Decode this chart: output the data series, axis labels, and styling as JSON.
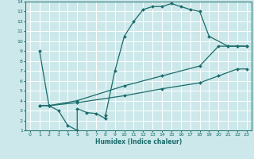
{
  "xlabel": "Humidex (Indice chaleur)",
  "xlim": [
    -0.5,
    23.5
  ],
  "ylim": [
    1,
    14
  ],
  "xticks": [
    0,
    1,
    2,
    3,
    4,
    5,
    6,
    7,
    8,
    9,
    10,
    11,
    12,
    13,
    14,
    15,
    16,
    17,
    18,
    19,
    20,
    21,
    22,
    23
  ],
  "yticks": [
    1,
    2,
    3,
    4,
    5,
    6,
    7,
    8,
    9,
    10,
    11,
    12,
    13,
    14
  ],
  "bg_color": "#cce8ea",
  "grid_color": "#ffffff",
  "line_color": "#1a6b6b",
  "curve1_x": [
    1,
    2,
    3,
    4,
    5,
    5,
    6,
    7,
    8,
    8,
    9,
    10,
    11,
    12,
    13,
    14,
    15,
    16,
    17,
    18,
    19,
    21,
    22,
    23
  ],
  "curve1_y": [
    9,
    3.5,
    3,
    1.5,
    1,
    3.2,
    2.8,
    2.7,
    2.2,
    2.5,
    7,
    10.5,
    12,
    13.2,
    13.5,
    13.5,
    13.8,
    13.5,
    13.2,
    13.0,
    10.5,
    9.5,
    9.5,
    9.5
  ],
  "curve2_x": [
    1,
    2,
    5,
    10,
    14,
    18,
    20,
    21,
    22,
    23
  ],
  "curve2_y": [
    3.5,
    3.5,
    4.0,
    5.5,
    6.5,
    7.5,
    9.5,
    9.5,
    9.5,
    9.5
  ],
  "curve3_x": [
    1,
    2,
    5,
    10,
    14,
    18,
    20,
    22,
    23
  ],
  "curve3_y": [
    3.5,
    3.5,
    3.8,
    4.5,
    5.2,
    5.8,
    6.5,
    7.2,
    7.2
  ]
}
